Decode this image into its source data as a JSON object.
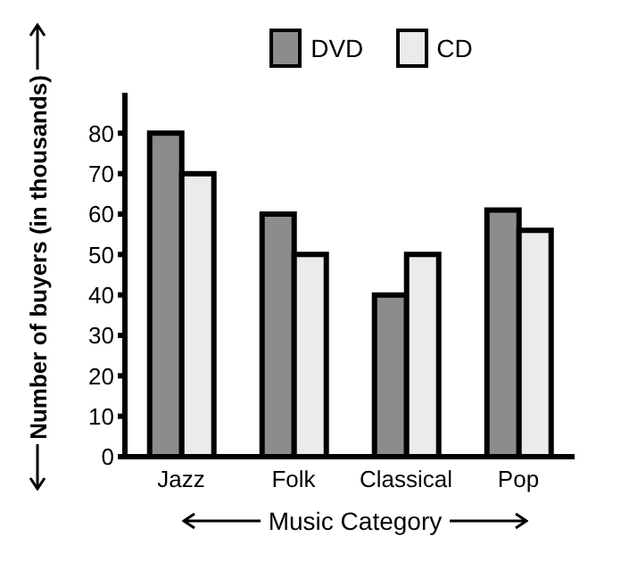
{
  "chart_data": {
    "type": "bar",
    "xlabel": "Music Category",
    "ylabel": "Number of buyers (in thousands)",
    "categories": [
      "Jazz",
      "Folk",
      "Classical",
      "Pop"
    ],
    "series": [
      {
        "name": "DVD",
        "color": "#8c8c8c",
        "values": [
          80,
          60,
          40,
          61
        ]
      },
      {
        "name": "CD",
        "color": "#ebebeb",
        "values": [
          70,
          50,
          50,
          56
        ]
      }
    ],
    "ylim": [
      0,
      90
    ],
    "yticks": [
      0,
      10,
      20,
      30,
      40,
      50,
      60,
      70,
      80
    ],
    "grid": false,
    "legend": "top"
  }
}
